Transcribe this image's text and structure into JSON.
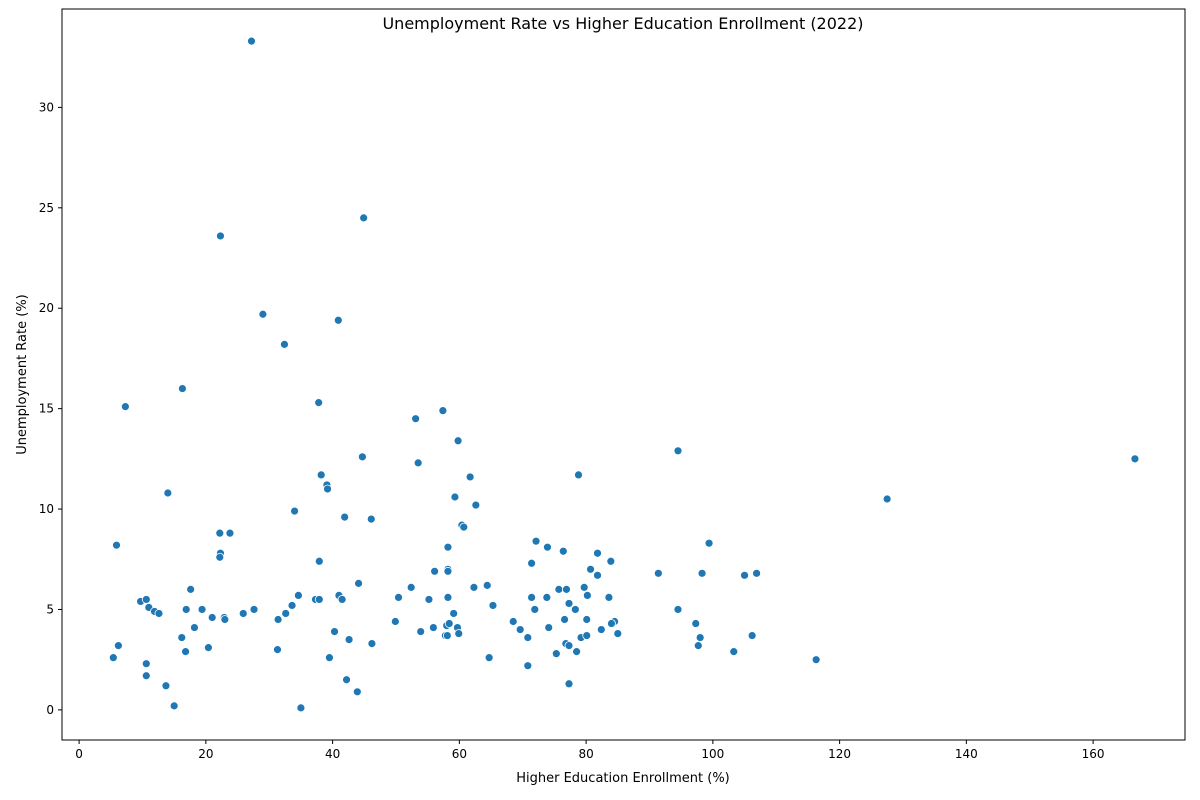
{
  "chart_data": {
    "type": "scatter",
    "title": "Unemployment Rate vs Higher Education Enrollment (2022)",
    "xlabel": "Higher Education Enrollment (%)",
    "ylabel": "Unemployment Rate (%)",
    "xlim": [
      -2.7,
      174.5
    ],
    "ylim": [
      -1.5,
      34.9
    ],
    "xticks": [
      0,
      20,
      40,
      60,
      80,
      100,
      120,
      140,
      160
    ],
    "yticks": [
      0,
      5,
      10,
      15,
      20,
      25,
      30
    ],
    "grid": false,
    "marker_color": "#1f77b4",
    "points": [
      [
        27.2,
        33.3
      ],
      [
        44.9,
        24.5
      ],
      [
        22.3,
        23.6
      ],
      [
        29.0,
        19.7
      ],
      [
        40.9,
        19.4
      ],
      [
        32.4,
        18.2
      ],
      [
        16.3,
        16.0
      ],
      [
        7.3,
        15.1
      ],
      [
        37.8,
        15.3
      ],
      [
        57.4,
        14.9
      ],
      [
        53.1,
        14.5
      ],
      [
        59.8,
        13.4
      ],
      [
        94.5,
        12.9
      ],
      [
        166.6,
        12.5
      ],
      [
        44.7,
        12.6
      ],
      [
        53.5,
        12.3
      ],
      [
        38.2,
        11.7
      ],
      [
        61.7,
        11.6
      ],
      [
        78.8,
        11.7
      ],
      [
        39.1,
        11.2
      ],
      [
        39.2,
        11.0
      ],
      [
        14.0,
        10.8
      ],
      [
        59.3,
        10.6
      ],
      [
        62.6,
        10.2
      ],
      [
        127.5,
        10.5
      ],
      [
        34.0,
        9.9
      ],
      [
        41.9,
        9.6
      ],
      [
        46.1,
        9.5
      ],
      [
        60.4,
        9.2
      ],
      [
        60.7,
        9.1
      ],
      [
        5.9,
        8.2
      ],
      [
        22.2,
        8.8
      ],
      [
        23.8,
        8.8
      ],
      [
        72.1,
        8.4
      ],
      [
        73.9,
        8.1
      ],
      [
        58.2,
        8.1
      ],
      [
        99.4,
        8.3
      ],
      [
        76.4,
        7.9
      ],
      [
        81.8,
        7.8
      ],
      [
        22.3,
        7.8
      ],
      [
        22.2,
        7.6
      ],
      [
        37.9,
        7.4
      ],
      [
        71.4,
        7.3
      ],
      [
        83.9,
        7.4
      ],
      [
        80.7,
        7.0
      ],
      [
        58.2,
        7.0
      ],
      [
        58.2,
        6.9
      ],
      [
        56.1,
        6.9
      ],
      [
        81.8,
        6.7
      ],
      [
        91.4,
        6.8
      ],
      [
        98.3,
        6.8
      ],
      [
        105.0,
        6.7
      ],
      [
        106.9,
        6.8
      ],
      [
        44.1,
        6.3
      ],
      [
        64.4,
        6.2
      ],
      [
        52.4,
        6.1
      ],
      [
        62.3,
        6.1
      ],
      [
        75.7,
        6.0
      ],
      [
        79.7,
        6.1
      ],
      [
        76.9,
        6.0
      ],
      [
        17.6,
        6.0
      ],
      [
        34.6,
        5.7
      ],
      [
        41.0,
        5.7
      ],
      [
        41.5,
        5.5
      ],
      [
        37.3,
        5.5
      ],
      [
        37.9,
        5.5
      ],
      [
        50.4,
        5.6
      ],
      [
        55.2,
        5.5
      ],
      [
        58.2,
        5.6
      ],
      [
        71.4,
        5.6
      ],
      [
        73.8,
        5.6
      ],
      [
        80.2,
        5.7
      ],
      [
        83.6,
        5.6
      ],
      [
        77.3,
        5.3
      ],
      [
        65.3,
        5.2
      ],
      [
        33.6,
        5.2
      ],
      [
        9.7,
        5.4
      ],
      [
        10.6,
        5.5
      ],
      [
        11.0,
        5.1
      ],
      [
        11.9,
        4.9
      ],
      [
        12.6,
        4.8
      ],
      [
        16.9,
        5.0
      ],
      [
        19.4,
        5.0
      ],
      [
        27.6,
        5.0
      ],
      [
        71.9,
        5.0
      ],
      [
        78.3,
        5.0
      ],
      [
        94.5,
        5.0
      ],
      [
        59.1,
        4.8
      ],
      [
        25.9,
        4.8
      ],
      [
        32.6,
        4.8
      ],
      [
        21.0,
        4.6
      ],
      [
        22.9,
        4.6
      ],
      [
        23.0,
        4.5
      ],
      [
        31.4,
        4.5
      ],
      [
        49.9,
        4.4
      ],
      [
        68.5,
        4.4
      ],
      [
        76.6,
        4.5
      ],
      [
        80.1,
        4.5
      ],
      [
        84.5,
        4.4
      ],
      [
        84.0,
        4.3
      ],
      [
        97.3,
        4.3
      ],
      [
        58.0,
        4.2
      ],
      [
        58.4,
        4.3
      ],
      [
        59.7,
        4.1
      ],
      [
        18.2,
        4.1
      ],
      [
        40.3,
        3.9
      ],
      [
        53.9,
        3.9
      ],
      [
        55.9,
        4.1
      ],
      [
        69.6,
        4.0
      ],
      [
        74.1,
        4.1
      ],
      [
        82.4,
        4.0
      ],
      [
        57.8,
        3.7
      ],
      [
        58.1,
        3.7
      ],
      [
        59.9,
        3.8
      ],
      [
        70.8,
        3.6
      ],
      [
        79.2,
        3.6
      ],
      [
        80.1,
        3.7
      ],
      [
        85.0,
        3.8
      ],
      [
        98.0,
        3.6
      ],
      [
        106.2,
        3.7
      ],
      [
        16.2,
        3.6
      ],
      [
        42.6,
        3.5
      ],
      [
        46.2,
        3.3
      ],
      [
        76.8,
        3.3
      ],
      [
        77.3,
        3.2
      ],
      [
        97.7,
        3.2
      ],
      [
        6.2,
        3.2
      ],
      [
        20.4,
        3.1
      ],
      [
        31.3,
        3.0
      ],
      [
        16.8,
        2.9
      ],
      [
        78.5,
        2.9
      ],
      [
        75.3,
        2.8
      ],
      [
        103.3,
        2.9
      ],
      [
        5.4,
        2.6
      ],
      [
        39.5,
        2.6
      ],
      [
        64.7,
        2.6
      ],
      [
        116.3,
        2.5
      ],
      [
        10.6,
        2.3
      ],
      [
        70.8,
        2.2
      ],
      [
        10.6,
        1.7
      ],
      [
        42.2,
        1.5
      ],
      [
        77.3,
        1.3
      ],
      [
        13.7,
        1.2
      ],
      [
        43.9,
        0.9
      ],
      [
        15.0,
        0.2
      ],
      [
        35.0,
        0.1
      ]
    ]
  }
}
